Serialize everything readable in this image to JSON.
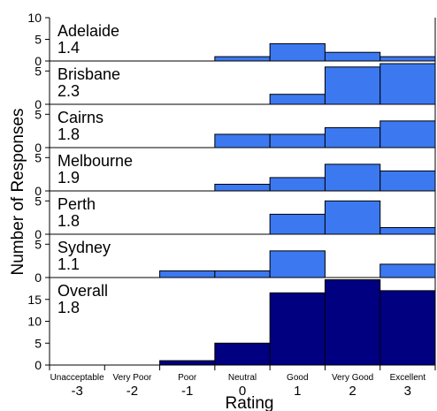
{
  "chart_data": {
    "type": "bar",
    "xlabel": "Rating",
    "ylabel": "Number of Responses",
    "categories": [
      {
        "name": "Unacceptable",
        "value": "-3"
      },
      {
        "name": "Very Poor",
        "value": "-2"
      },
      {
        "name": "Poor",
        "value": "-1"
      },
      {
        "name": "Neutral",
        "value": "0"
      },
      {
        "name": "Good",
        "value": "1"
      },
      {
        "name": "Very Good",
        "value": "2"
      },
      {
        "name": "Excellent",
        "value": "3"
      }
    ],
    "panels": [
      {
        "name": "Adelaide",
        "mean": "1.4",
        "ylim": [
          0,
          10
        ],
        "yticks": [
          0,
          5,
          10
        ],
        "color": "#3c78f0",
        "values": [
          0,
          0,
          0,
          1,
          4,
          2,
          1
        ]
      },
      {
        "name": "Brisbane",
        "mean": "2.3",
        "ylim": [
          0,
          6.5
        ],
        "yticks": [
          0,
          5
        ],
        "color": "#3c78f0",
        "values": [
          0,
          0,
          0,
          0,
          1.5,
          5.6,
          6.1
        ]
      },
      {
        "name": "Cairns",
        "mean": "1.8",
        "ylim": [
          0,
          6.5
        ],
        "yticks": [
          0,
          5
        ],
        "color": "#3c78f0",
        "values": [
          0,
          0,
          0,
          2,
          2,
          3,
          4
        ]
      },
      {
        "name": "Melbourne",
        "mean": "1.9",
        "ylim": [
          0,
          6.5
        ],
        "yticks": [
          0,
          5
        ],
        "color": "#3c78f0",
        "values": [
          0,
          0,
          0,
          1,
          2,
          4,
          3
        ]
      },
      {
        "name": "Perth",
        "mean": "1.8",
        "ylim": [
          0,
          6.5
        ],
        "yticks": [
          0,
          5
        ],
        "color": "#3c78f0",
        "values": [
          0,
          0,
          0,
          0,
          3,
          5,
          1
        ]
      },
      {
        "name": "Sydney",
        "mean": "1.1",
        "ylim": [
          0,
          6.5
        ],
        "yticks": [
          0,
          5
        ],
        "color": "#3c78f0",
        "values": [
          0,
          0,
          1,
          1,
          4,
          0,
          2
        ]
      },
      {
        "name": "Overall",
        "mean": "1.8",
        "ylim": [
          0,
          20
        ],
        "yticks": [
          0,
          5,
          10,
          15
        ],
        "color": "#000080",
        "values": [
          0,
          0,
          1,
          5,
          16.5,
          19.5,
          17
        ]
      }
    ]
  }
}
